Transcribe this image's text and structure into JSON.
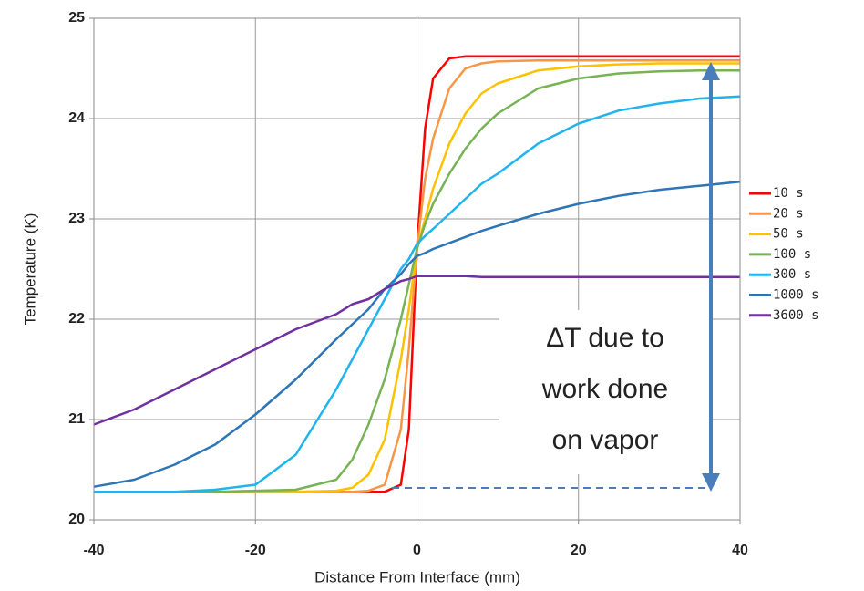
{
  "chart_data": {
    "type": "line",
    "x_label": "Distance From Interface (mm)",
    "y_label": "Temperature (K)",
    "x": [
      -40,
      -35,
      -30,
      -25,
      -20,
      -15,
      -10,
      -8,
      -6,
      -4,
      -2,
      -1,
      0,
      1,
      2,
      4,
      6,
      8,
      10,
      15,
      20,
      25,
      30,
      35,
      40
    ],
    "xlim": [
      -40,
      40
    ],
    "xticks": [
      -40,
      -20,
      0,
      20,
      40
    ],
    "ylim": [
      20,
      25
    ],
    "yticks": [
      20,
      21,
      22,
      23,
      24,
      25
    ],
    "grid": true,
    "legend": "right",
    "annotation": [
      "ΔT due to",
      "work done",
      "on vapor"
    ],
    "series": [
      {
        "name": "10 s",
        "color": "#ff0000",
        "values": [
          20.28,
          20.28,
          20.28,
          20.28,
          20.28,
          20.28,
          20.28,
          20.28,
          20.28,
          20.28,
          20.35,
          20.9,
          22.7,
          23.9,
          24.4,
          24.6,
          24.62,
          24.62,
          24.62,
          24.62,
          24.62,
          24.62,
          24.62,
          24.62,
          24.62
        ]
      },
      {
        "name": "20 s",
        "color": "#f79646",
        "values": [
          20.28,
          20.28,
          20.28,
          20.28,
          20.28,
          20.28,
          20.28,
          20.28,
          20.29,
          20.35,
          20.9,
          21.7,
          22.7,
          23.4,
          23.8,
          24.3,
          24.5,
          24.55,
          24.57,
          24.58,
          24.58,
          24.58,
          24.58,
          24.58,
          24.58
        ]
      },
      {
        "name": "50 s",
        "color": "#ffc000",
        "values": [
          20.28,
          20.28,
          20.28,
          20.28,
          20.28,
          20.28,
          20.29,
          20.32,
          20.45,
          20.8,
          21.6,
          22.1,
          22.7,
          23.0,
          23.3,
          23.75,
          24.05,
          24.25,
          24.35,
          24.48,
          24.52,
          24.54,
          24.55,
          24.55,
          24.55
        ]
      },
      {
        "name": "100 s",
        "color": "#77b255",
        "values": [
          20.28,
          20.28,
          20.28,
          20.28,
          20.29,
          20.3,
          20.4,
          20.6,
          20.95,
          21.4,
          22.0,
          22.35,
          22.7,
          22.95,
          23.15,
          23.45,
          23.7,
          23.9,
          24.05,
          24.3,
          24.4,
          24.45,
          24.47,
          24.48,
          24.48
        ]
      },
      {
        "name": "300 s",
        "color": "#1fb4ee",
        "values": [
          20.28,
          20.28,
          20.28,
          20.3,
          20.35,
          20.65,
          21.3,
          21.6,
          21.9,
          22.2,
          22.5,
          22.6,
          22.75,
          22.83,
          22.9,
          23.05,
          23.2,
          23.35,
          23.45,
          23.75,
          23.95,
          24.08,
          24.15,
          24.2,
          24.22
        ]
      },
      {
        "name": "1000 s",
        "color": "#2e75b6",
        "values": [
          20.33,
          20.4,
          20.55,
          20.75,
          21.05,
          21.4,
          21.8,
          21.95,
          22.1,
          22.3,
          22.45,
          22.55,
          22.63,
          22.66,
          22.7,
          22.76,
          22.82,
          22.88,
          22.93,
          23.05,
          23.15,
          23.23,
          23.29,
          23.33,
          23.37
        ]
      },
      {
        "name": "3600 s",
        "color": "#7030a0",
        "values": [
          20.95,
          21.1,
          21.3,
          21.5,
          21.7,
          21.9,
          22.05,
          22.15,
          22.2,
          22.3,
          22.38,
          22.4,
          22.43,
          22.43,
          22.43,
          22.43,
          22.43,
          22.42,
          22.42,
          22.42,
          22.42,
          22.42,
          22.42,
          22.42,
          22.42
        ]
      }
    ]
  }
}
